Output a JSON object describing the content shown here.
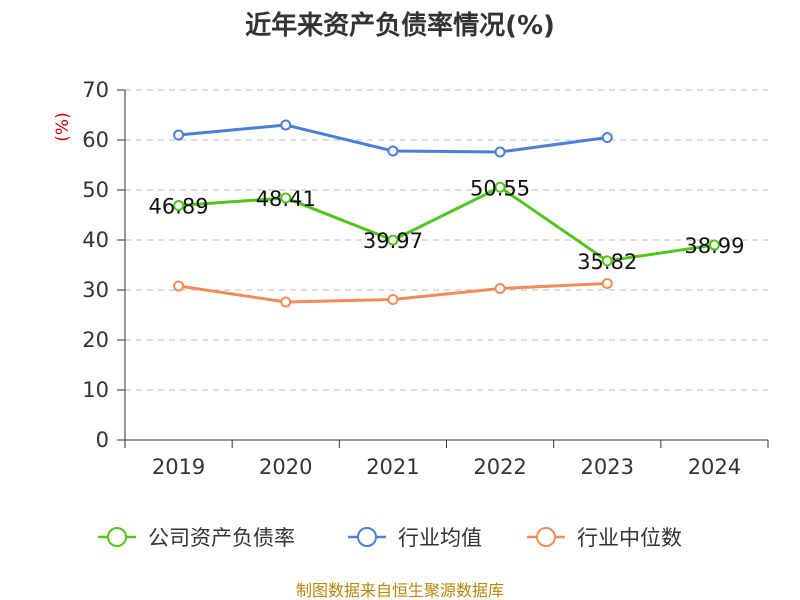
{
  "title": "近年来资产负债率情况(%)",
  "source": "制图数据来自恒生聚源数据库",
  "chart_data": {
    "type": "line",
    "title": "近年来资产负债率情况(%)",
    "xlabel": "",
    "ylabel": "(%)",
    "categories": [
      "2019",
      "2020",
      "2021",
      "2022",
      "2023",
      "2024"
    ],
    "ylim": [
      0,
      70
    ],
    "yticks": [
      0,
      10,
      20,
      30,
      40,
      50,
      60,
      70
    ],
    "grid": true,
    "legend_position": "bottom",
    "series": [
      {
        "name": "公司资产负债率",
        "color": "#52c41a",
        "values": [
          46.89,
          48.41,
          39.97,
          50.55,
          35.82,
          38.99
        ],
        "labels": [
          "46.89",
          "48.41",
          "39.97",
          "50.55",
          "35.82",
          "38.99"
        ]
      },
      {
        "name": "行业均值",
        "color": "#4a7fd6",
        "values": [
          61.0,
          63.0,
          57.8,
          57.6,
          60.5,
          null
        ]
      },
      {
        "name": "行业中位数",
        "color": "#f28b57",
        "values": [
          30.8,
          27.6,
          28.1,
          30.3,
          31.3,
          null
        ]
      }
    ]
  }
}
